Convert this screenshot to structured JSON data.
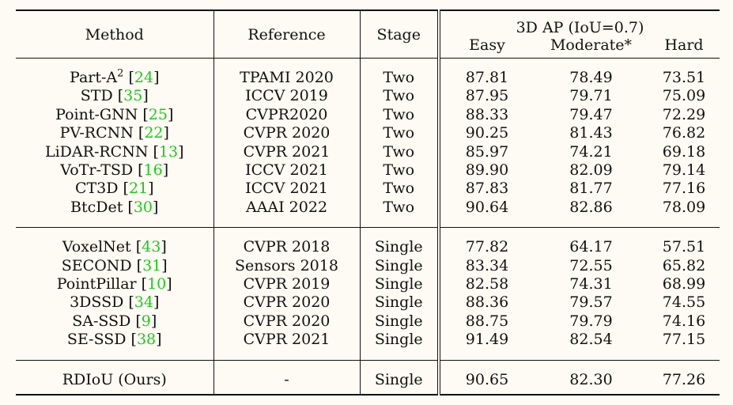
{
  "header": {
    "method": "Method",
    "reference": "Reference",
    "stage": "Stage",
    "ap_group": "3D AP (IoU=0.7)",
    "easy": "Easy",
    "moderate": "Moderate*",
    "hard": "Hard"
  },
  "two_stage": [
    {
      "name": "Part-A",
      "sup": "2",
      "cite": "24",
      "reference": "TPAMI 2020",
      "stage": "Two",
      "easy": "87.81",
      "moderate": "78.49",
      "hard": "73.51",
      "bold": []
    },
    {
      "name": "STD",
      "sup": "",
      "cite": "35",
      "reference": "ICCV 2019",
      "stage": "Two",
      "easy": "87.95",
      "moderate": "79.71",
      "hard": "75.09",
      "bold": []
    },
    {
      "name": "Point-GNN",
      "sup": "",
      "cite": "25",
      "reference": "CVPR2020",
      "stage": "Two",
      "easy": "88.33",
      "moderate": "79.47",
      "hard": "72.29",
      "bold": []
    },
    {
      "name": "PV-RCNN",
      "sup": "",
      "cite": "22",
      "reference": "CVPR 2020",
      "stage": "Two",
      "easy": "90.25",
      "moderate": "81.43",
      "hard": "76.82",
      "bold": []
    },
    {
      "name": "LiDAR-RCNN",
      "sup": "",
      "cite": "13",
      "reference": "CVPR 2021",
      "stage": "Two",
      "easy": "85.97",
      "moderate": "74.21",
      "hard": "69.18",
      "bold": []
    },
    {
      "name": "VoTr-TSD",
      "sup": "",
      "cite": "16",
      "reference": "ICCV 2021",
      "stage": "Two",
      "easy": "89.90",
      "moderate": "82.09",
      "hard": "79.14",
      "bold": [
        "hard"
      ]
    },
    {
      "name": "CT3D",
      "sup": "",
      "cite": "21",
      "reference": "ICCV 2021",
      "stage": "Two",
      "easy": "87.83",
      "moderate": "81.77",
      "hard": "77.16",
      "bold": []
    },
    {
      "name": "BtcDet",
      "sup": "",
      "cite": "30",
      "reference": "AAAI 2022",
      "stage": "Two",
      "easy": "90.64",
      "moderate": "82.86",
      "hard": "78.09",
      "bold": [
        "easy",
        "moderate"
      ]
    }
  ],
  "single_stage": [
    {
      "name": "VoxelNet",
      "sup": "",
      "cite": "43",
      "reference": "CVPR 2018",
      "stage": "Single",
      "easy": "77.82",
      "moderate": "64.17",
      "hard": "57.51",
      "bold": []
    },
    {
      "name": "SECOND",
      "sup": "",
      "cite": "31",
      "reference": "Sensors 2018",
      "stage": "Single",
      "easy": "83.34",
      "moderate": "72.55",
      "hard": "65.82",
      "bold": []
    },
    {
      "name": "PointPillar",
      "sup": "",
      "cite": "10",
      "reference": "CVPR 2019",
      "stage": "Single",
      "easy": "82.58",
      "moderate": "74.31",
      "hard": "68.99",
      "bold": []
    },
    {
      "name": "3DSSD",
      "sup": "",
      "cite": "34",
      "reference": "CVPR 2020",
      "stage": "Single",
      "easy": "88.36",
      "moderate": "79.57",
      "hard": "74.55",
      "bold": []
    },
    {
      "name": "SA-SSD",
      "sup": "",
      "cite": "9",
      "reference": "CVPR 2020",
      "stage": "Single",
      "easy": "88.75",
      "moderate": "79.79",
      "hard": "74.16",
      "bold": []
    },
    {
      "name": "SE-SSD",
      "sup": "",
      "cite": "38",
      "reference": "CVPR 2021",
      "stage": "Single",
      "easy": "91.49",
      "moderate": "82.54",
      "hard": "77.15",
      "bold": [
        "easy",
        "moderate"
      ]
    }
  ],
  "ours": {
    "name": "RDIoU (Ours)",
    "reference": "-",
    "stage": "Single",
    "easy": "90.65",
    "moderate": "82.30",
    "hard": "77.26",
    "bold": [
      "name",
      "hard"
    ]
  }
}
